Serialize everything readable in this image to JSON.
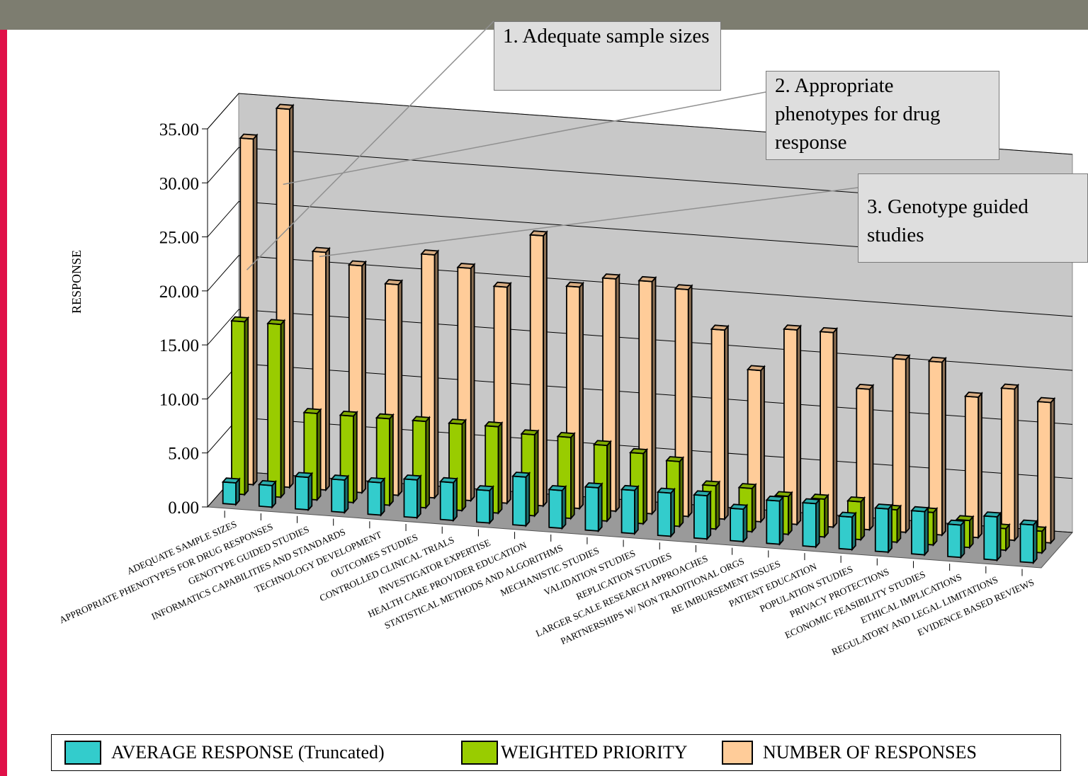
{
  "chart_data": {
    "type": "bar",
    "title": "",
    "xlabel": "",
    "ylabel": "RESPONSE",
    "ylim": [
      0,
      35
    ],
    "ytick_labels": [
      "0.00",
      "5.00",
      "10.00",
      "15.00",
      "20.00",
      "25.00",
      "30.00",
      "35.00"
    ],
    "grid": true,
    "legend_position": "bottom",
    "categories": [
      "ADEQUATE SAMPLE SIZES",
      "APPROPRIATE PHENOTYPES FOR DRUG RESPONSES",
      "GENOTYPE GUIDED STUDIES",
      "INFORMATICS CAPABILITIES AND STANDARDS",
      "TECHNOLOGY DEVELOPMENT",
      "OUTCOMES STUDIES",
      "CONTROLLED CLINICAL TRIALS",
      "INVESTIGATOR EXPERTISE",
      "HEALTH CARE PROVIDER EDUCATION",
      "STATISTICAL METHODS AND ALGORITHMS",
      "MECHANISTIC STUDIES",
      "VALIDATION STUDIES",
      "REPLICATION STUDIES",
      "LARGER SCALE RESEARCH APPROACHES",
      "PARTNERSHIPS W/ NON TRADITIONAL ORGS",
      "RE IMBURSEMENT ISSUES",
      "PATIENT EDUCATION",
      "POPULATION STUDIES",
      "PRIVACY PROTECTIONS",
      "ECONOMIC FEASIBILITY STUDIES",
      "ETHICAL IMPLICATIONS",
      "REGULATORY AND LEGAL LIMITATIONS",
      "EVIDENCE BASED REVIEWS"
    ],
    "series": [
      {
        "name": "AVERAGE RESPONSE (Truncated)",
        "color": "#33cccc",
        "values": [
          2,
          2,
          3,
          3,
          3,
          3.5,
          3.5,
          3,
          4.5,
          3.5,
          4,
          4,
          4,
          4,
          3,
          4,
          4,
          3,
          4,
          4,
          3,
          4,
          3.5
        ]
      },
      {
        "name": "WEIGHTED PRIORITY",
        "color": "#99cc00",
        "values": [
          16,
          16,
          8,
          8,
          8,
          8,
          8,
          8,
          7.5,
          7.5,
          7,
          6.5,
          6,
          4,
          4,
          3.5,
          3.5,
          3.5,
          3,
          3,
          2.5,
          2,
          2
        ]
      },
      {
        "name": "NUMBER OF RESPONSES",
        "color": "#ffcc99",
        "values": [
          32,
          35,
          22,
          21,
          19.5,
          22.5,
          21.5,
          20,
          25,
          20.5,
          21.5,
          21.5,
          21,
          17.5,
          14,
          18,
          18,
          13,
          16,
          16,
          13,
          14,
          13
        ]
      }
    ],
    "annotations": [
      {
        "text": "1. Adequate sample sizes",
        "category": "ADEQUATE SAMPLE SIZES"
      },
      {
        "text": "2. Appropriate phenotypes for drug response",
        "category": "APPROPRIATE PHENOTYPES FOR DRUG RESPONSES"
      },
      {
        "text": "3. Genotype guided studies",
        "category": "GENOTYPE GUIDED STUDIES"
      }
    ]
  },
  "callouts": [
    "1.  Adequate sample sizes",
    "2. Appropriate phenotypes for drug response",
    "3. Genotype guided studies"
  ]
}
